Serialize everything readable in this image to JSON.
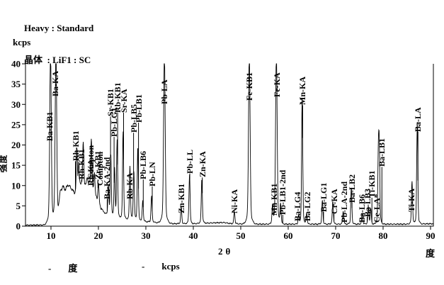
{
  "header": {
    "line1": "Heavy : Standard",
    "line2": "晶体  : LiF1 : SC"
  },
  "legend": [
    {
      "marker": "-",
      "label": "度"
    },
    {
      "marker": "-",
      "label": "kcps"
    }
  ],
  "colors": {
    "line": "#000000",
    "background": "#ffffff",
    "text": "#000000"
  },
  "chart_data": {
    "type": "line",
    "title": "",
    "x_axis": {
      "title": "2θ",
      "unit": "度",
      "ticks": [
        10,
        20,
        30,
        40,
        50,
        60,
        70,
        80,
        90
      ],
      "range": [
        4.63,
        90.6
      ]
    },
    "y_axis": {
      "unit": "kcps",
      "title": "强度",
      "ticks": [
        0,
        5,
        10,
        15,
        20,
        25,
        30,
        35,
        40
      ],
      "range": [
        0,
        40
      ]
    },
    "grid": false,
    "peaks": [
      {
        "label": "Ba-KB1",
        "deg": 9.9,
        "kcps": 40,
        "label_deg": 9.75,
        "base": 21
      },
      {
        "label": "Ba-KA",
        "deg": 11.05,
        "kcps": 40,
        "label_deg": 10.95,
        "base": 32
      },
      {
        "label": "Rh-KB1",
        "deg": 15.45,
        "kcps": 18.5,
        "label_deg": 15.15,
        "base": 16
      },
      {
        "label": "Rh-KB1\nCompton",
        "deg": 16.8,
        "kcps": 20,
        "label_deg": 16.45,
        "base": 11.5
      },
      {
        "label": "Rh-KA\nCompton",
        "deg": 18.5,
        "kcps": 21,
        "label_deg": 18.35,
        "base": 10
      },
      {
        "label": "Zr-KB1",
        "deg": 20.0,
        "kcps": 10.5,
        "label_deg": 19.9,
        "base": 11.5
      },
      {
        "label": "Ba-KA-2nd",
        "deg": 22.1,
        "kcps": 9.5,
        "label_deg": 21.85,
        "base": 6.7
      },
      {
        "label": "Sr-KB1",
        "deg": 22.6,
        "kcps": 17,
        "label_deg": 22.55,
        "base": 27
      },
      {
        "label": "Pb-LG1",
        "deg": 23.4,
        "kcps": 13.5,
        "label_deg": 23.3,
        "base": 22
      },
      {
        "label": "Rb-KB1",
        "deg": 23.95,
        "kcps": 20,
        "label_deg": 24.05,
        "base": 28
      },
      {
        "label": "Sr-KA",
        "deg": 25.2,
        "kcps": 22,
        "label_deg": 25.3,
        "base": 28
      },
      {
        "label": "Rb-KA",
        "deg": 26.65,
        "kcps": 14,
        "label_deg": 26.6,
        "base": 6.7
      },
      {
        "label": "Pb-LB5",
        "deg": 27.45,
        "kcps": 13,
        "label_deg": 27.4,
        "base": 23
      },
      {
        "label": "Pb-LB1",
        "deg": 28.3,
        "kcps": 18.5,
        "label_deg": 28.45,
        "base": 25.5
      },
      {
        "label": "Pb-LB6",
        "deg": 29.35,
        "kcps": 6,
        "label_deg": 29.45,
        "base": 11.5
      },
      {
        "label": "Pb-LN",
        "deg": 31.2,
        "kcps": 7,
        "label_deg": 31.35,
        "base": 9.8
      },
      {
        "label": "Pb-LA",
        "deg": 33.9,
        "kcps": 40,
        "label_deg": 33.9,
        "base": 30
      },
      {
        "label": "Zn-KB1",
        "deg": 37.45,
        "kcps": 4.5,
        "label_deg": 37.4,
        "base": 3.2
      },
      {
        "label": "Pb-LL",
        "deg": 39.2,
        "kcps": 12,
        "label_deg": 39.25,
        "base": 13
      },
      {
        "label": "Zn-KA",
        "deg": 41.8,
        "kcps": 11,
        "label_deg": 41.9,
        "base": 12
      },
      {
        "label": "Ni-KA",
        "deg": 48.65,
        "kcps": 3.5,
        "label_deg": 48.6,
        "base": 3.2
      },
      {
        "label": "Fe-KB1",
        "deg": 51.8,
        "kcps": 40,
        "label_deg": 51.8,
        "base": 31
      },
      {
        "label": "Mn-KB1",
        "deg": 56.7,
        "kcps": 4.5,
        "label_deg": 56.95,
        "base": 2.6
      },
      {
        "label": "Fe-KA",
        "deg": 57.5,
        "kcps": 40,
        "label_deg": 57.6,
        "base": 31.8
      },
      {
        "label": "Pb-LB1-2nd",
        "deg": 58.4,
        "kcps": 5,
        "label_deg": 58.85,
        "base": 2.8
      },
      {
        "label": "Ba-LG4",
        "deg": 62.2,
        "kcps": 2.5,
        "label_deg": 62.0,
        "base": 1.2
      },
      {
        "label": "Mn-KA",
        "deg": 62.95,
        "kcps": 29.5,
        "label_deg": 63.05,
        "base": 29.8
      },
      {
        "label": "Ba-LG2",
        "deg": 63.9,
        "kcps": 3,
        "label_deg": 64.05,
        "base": 1.2
      },
      {
        "label": "Ba-LG1",
        "deg": 67.2,
        "kcps": 6,
        "label_deg": 67.45,
        "base": 3.5
      },
      {
        "label": "Cr-KA",
        "deg": 69.4,
        "kcps": 5.8,
        "label_deg": 69.65,
        "base": 3.0
      },
      {
        "label": "Pb-LA-2nd",
        "deg": 71.6,
        "kcps": 3.5,
        "label_deg": 71.75,
        "base": 0.8
      },
      {
        "label": "Ba-LB2",
        "deg": 73.3,
        "kcps": 9,
        "label_deg": 73.45,
        "base": 5.8
      },
      {
        "label": "Ba-LB6",
        "deg": 75.6,
        "kcps": 3,
        "label_deg": 75.5,
        "base": 0.8
      },
      {
        "label": "Ba-LB3",
        "deg": 76.9,
        "kcps": 4.5,
        "label_deg": 76.65,
        "base": 2.3
      },
      {
        "label": "Ti-KB1",
        "deg": 77.4,
        "kcps": 4,
        "label_deg": 77.65,
        "base": 7
      },
      {
        "label": "Ce-LA*",
        "deg": 79.0,
        "kcps": 16,
        "label_deg": 78.7,
        "base": 0.8
      },
      {
        "label": "Ba-LB1",
        "deg": 79.2,
        "kcps": 17,
        "label_deg": 79.75,
        "base": 14.6
      },
      {
        "label": "Ti-KA",
        "deg": 86.1,
        "kcps": 10.5,
        "label_deg": 85.95,
        "base": 3.5
      },
      {
        "label": "Ba-LA",
        "deg": 87.2,
        "kcps": 24,
        "label_deg": 87.35,
        "base": 23.3
      }
    ],
    "extra_peaks": [
      [
        15.85,
        15
      ],
      [
        17.65,
        12
      ],
      [
        19.15,
        13
      ]
    ],
    "background_points": [
      [
        4.63,
        0.25
      ],
      [
        8.5,
        0.3
      ],
      [
        10.5,
        0.6
      ],
      [
        11.4,
        1.5
      ],
      [
        12.0,
        8.5
      ],
      [
        12.5,
        9.8
      ],
      [
        13.0,
        9.0
      ],
      [
        13.6,
        10.2
      ],
      [
        14.3,
        9.3
      ],
      [
        15.0,
        8.0
      ],
      [
        15.8,
        9.0
      ],
      [
        16.4,
        10.5
      ],
      [
        17.3,
        10.0
      ],
      [
        18.0,
        10.5
      ],
      [
        19.3,
        7.5
      ],
      [
        20.5,
        4.5
      ],
      [
        21.5,
        3.0
      ],
      [
        23.0,
        2.2
      ],
      [
        25.0,
        1.8
      ],
      [
        27.0,
        1.5
      ],
      [
        29.0,
        1.2
      ],
      [
        31.0,
        1.0
      ],
      [
        33.0,
        0.8
      ],
      [
        36.0,
        0.6
      ],
      [
        40.0,
        0.6
      ],
      [
        44.0,
        0.8
      ],
      [
        46.5,
        0.9
      ],
      [
        48.0,
        0.6
      ],
      [
        52.0,
        0.5
      ],
      [
        56.0,
        0.5
      ],
      [
        60.0,
        0.5
      ],
      [
        65.0,
        0.5
      ],
      [
        70.0,
        0.5
      ],
      [
        75.0,
        0.5
      ],
      [
        80.0,
        0.5
      ],
      [
        85.0,
        0.5
      ],
      [
        90.6,
        0.6
      ]
    ]
  }
}
